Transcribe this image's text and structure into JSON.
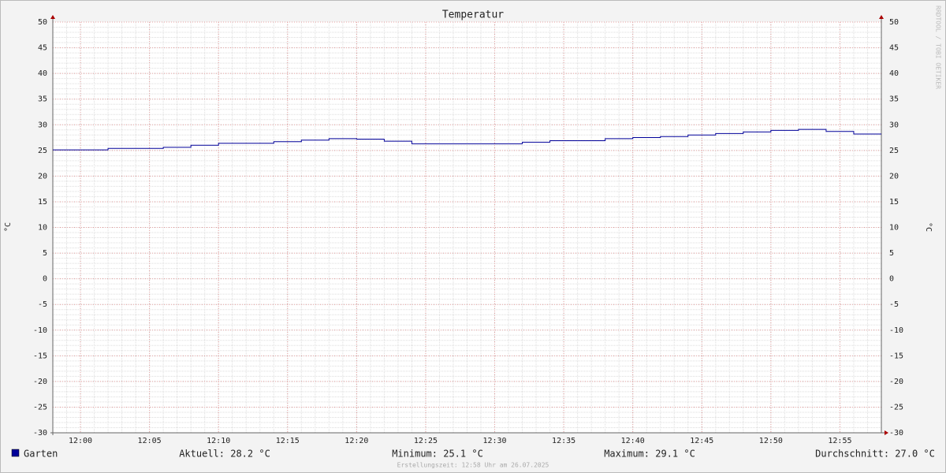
{
  "chart_data": {
    "type": "line",
    "title": "Temperatur",
    "ylabel": "°C",
    "y2label": "°C",
    "watermark": "RRDTOOL / TOBI OETIKER",
    "footer": "Erstellungszeit: 12:58 Uhr am 26.07.2025",
    "step": true,
    "x": [
      "11:58",
      "12:02",
      "12:06",
      "12:08",
      "12:10",
      "12:14",
      "12:16",
      "12:18",
      "12:20",
      "12:22",
      "12:24",
      "12:32",
      "12:34",
      "12:38",
      "12:40",
      "12:42",
      "12:44",
      "12:46",
      "12:48",
      "12:50",
      "12:52",
      "12:54",
      "12:56"
    ],
    "series": [
      {
        "name": "Garten",
        "color": "#000099",
        "values": [
          25.1,
          25.4,
          25.6,
          26.0,
          26.4,
          26.7,
          27.0,
          27.3,
          27.2,
          26.8,
          26.3,
          26.6,
          26.9,
          27.3,
          27.5,
          27.7,
          28.0,
          28.3,
          28.6,
          28.9,
          29.1,
          28.7,
          28.2
        ]
      }
    ],
    "stats": [
      "Aktuell: 28.2 °C",
      "Minimum: 25.1 °C",
      "Maximum: 29.1 °C",
      "Durchschnitt: 27.0 °C"
    ],
    "xlim": [
      "11:58",
      "12:58"
    ],
    "xticks": [
      "12:00",
      "12:05",
      "12:10",
      "12:15",
      "12:20",
      "12:25",
      "12:30",
      "12:35",
      "12:40",
      "12:45",
      "12:50",
      "12:55"
    ],
    "ylim": [
      -30,
      50
    ],
    "yticks": [
      -30,
      -25,
      -20,
      -15,
      -10,
      -5,
      0,
      5,
      10,
      15,
      20,
      25,
      30,
      35,
      40,
      45,
      50
    ],
    "grid": true
  }
}
